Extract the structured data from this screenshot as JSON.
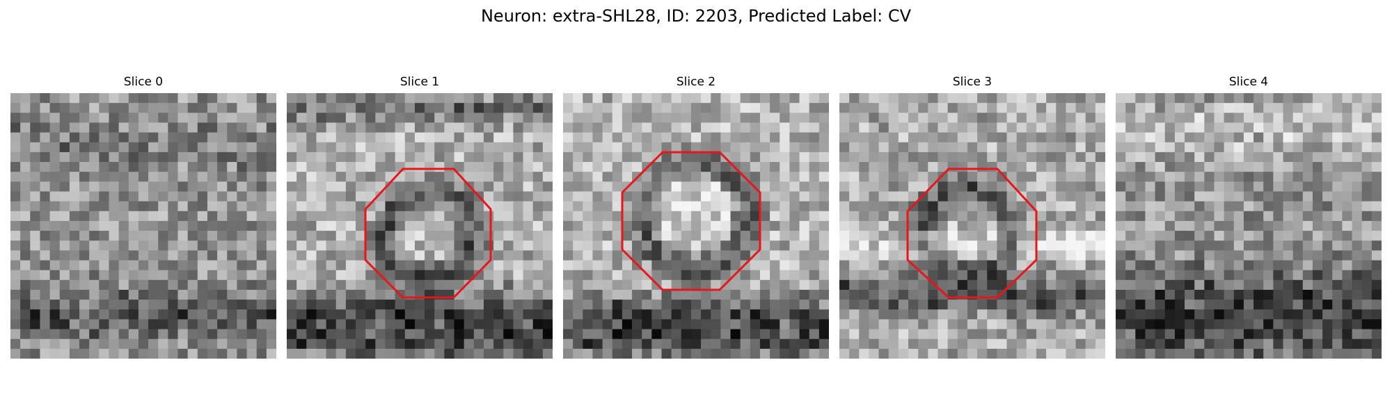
{
  "figure": {
    "title": "Neuron: extra-SHL28, ID: 2203, Predicted Label: CV"
  },
  "marker_color": "#e8161b",
  "slices": [
    {
      "label": "Slice 0",
      "has_marker": false
    },
    {
      "label": "Slice 1",
      "has_marker": true
    },
    {
      "label": "Slice 2",
      "has_marker": true
    },
    {
      "label": "Slice 3",
      "has_marker": true
    },
    {
      "label": "Slice 4",
      "has_marker": false
    }
  ]
}
